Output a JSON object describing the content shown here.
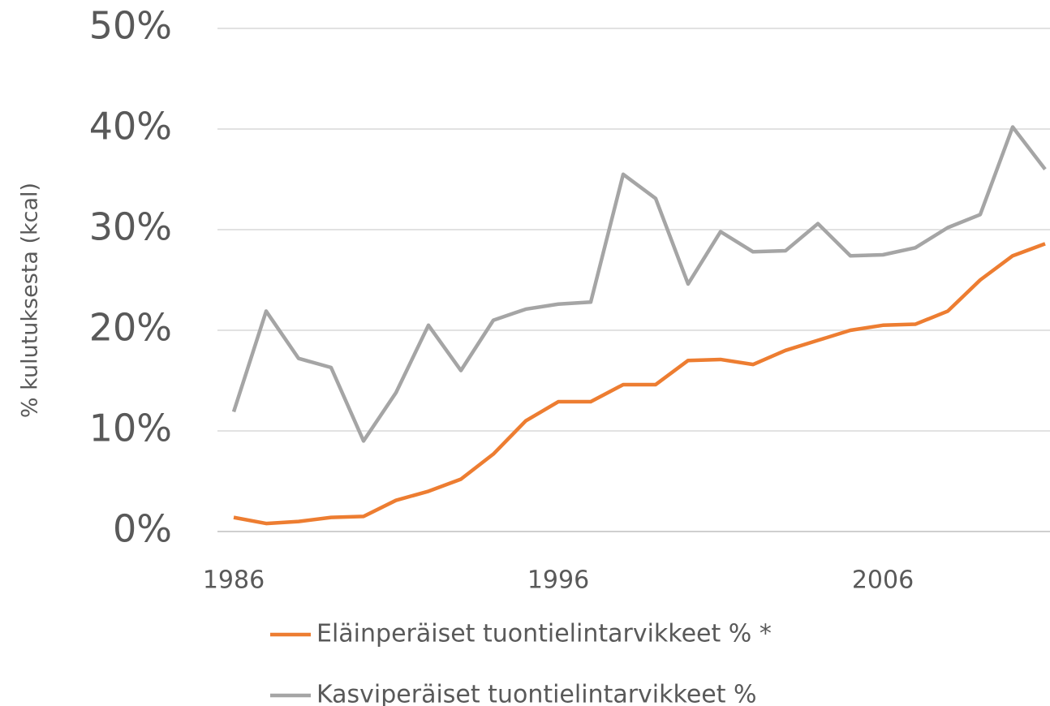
{
  "chart_data": {
    "type": "line",
    "y_label": "% kulutuksesta (kcal)",
    "x": [
      1986,
      1987,
      1988,
      1989,
      1990,
      1991,
      1992,
      1993,
      1994,
      1995,
      1996,
      1997,
      1998,
      1999,
      2000,
      2001,
      2002,
      2003,
      2004,
      2005,
      2006,
      2007,
      2008,
      2009,
      2010,
      2011
    ],
    "series": [
      {
        "name": "Eläinperäiset tuontielintarvikkeet % *",
        "color": "#ed7d31",
        "values": [
          1.4,
          0.8,
          1.0,
          1.4,
          1.5,
          3.1,
          4.0,
          5.2,
          7.7,
          11.0,
          12.9,
          12.9,
          14.6,
          14.6,
          17.0,
          17.1,
          16.6,
          18.0,
          19.0,
          20.0,
          20.5,
          20.6,
          21.9,
          25.0,
          27.4,
          28.6
        ]
      },
      {
        "name": "Kasviperäiset tuontielintarvikkeet %",
        "color": "#a5a5a5",
        "values": [
          11.9,
          21.9,
          17.2,
          16.3,
          9.0,
          13.8,
          20.5,
          16.0,
          21.0,
          22.1,
          22.6,
          22.8,
          35.5,
          33.1,
          24.6,
          29.8,
          27.8,
          27.9,
          30.6,
          27.4,
          27.5,
          28.2,
          30.2,
          31.5,
          40.2,
          36.0
        ]
      }
    ],
    "xlim": [
      1986,
      2011
    ],
    "xticks": [
      1986,
      1996,
      2006
    ],
    "ylim": [
      0,
      50
    ],
    "yticks": [
      {
        "value": 0,
        "label": "0%"
      },
      {
        "value": 10,
        "label": "10%"
      },
      {
        "value": 20,
        "label": "20%"
      },
      {
        "value": 30,
        "label": "30%"
      },
      {
        "value": 40,
        "label": "40%"
      },
      {
        "value": 50,
        "label": "50%"
      }
    ],
    "grid": true
  }
}
